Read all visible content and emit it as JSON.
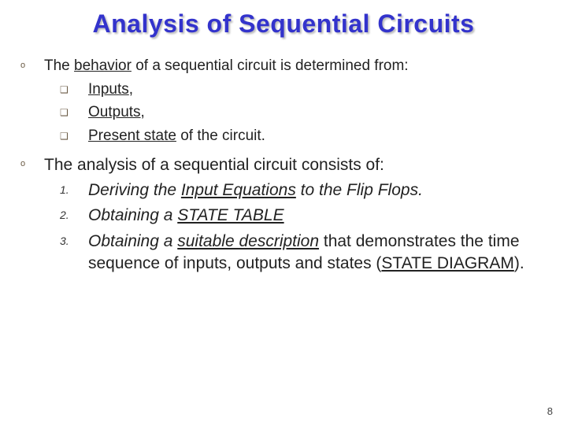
{
  "title": "Analysis of Sequential Circuits",
  "bullets": {
    "circle": "o",
    "square": "❑",
    "nums": [
      "1.",
      "2.",
      "3."
    ]
  },
  "line1": {
    "pre": "The ",
    "u": "behavior",
    "post": " of a sequential circuit is determined from:"
  },
  "sub1": [
    {
      "u": "Inputs",
      "post": ","
    },
    {
      "u": "Outputs",
      "post": ","
    },
    {
      "u": "Present state",
      "post": " of the circuit."
    }
  ],
  "line2": "The analysis of a sequential circuit consists of:",
  "steps": [
    {
      "italic_pre": "Deriving the ",
      "italic_u": "Input Equations",
      "italic_post": " to the Flip Flops."
    },
    {
      "italic_pre": "Obtaining a ",
      "italic_u": "STATE TABLE",
      "italic_post": ""
    },
    {
      "italic_pre": "Obtaining a ",
      "italic_u": "suitable description",
      "plain": " that demonstrates the time sequence of inputs, outputs and states (",
      "u2": "STATE DIAGRAM",
      "post2": ")."
    }
  ],
  "page_number": "8",
  "colors": {
    "title": "#3333cc",
    "bullet": "#6a5a44",
    "text": "#222222",
    "bg": "#ffffff"
  },
  "fontsizes": {
    "title": 32,
    "body": 19,
    "body_lg": 21,
    "num": 14
  }
}
